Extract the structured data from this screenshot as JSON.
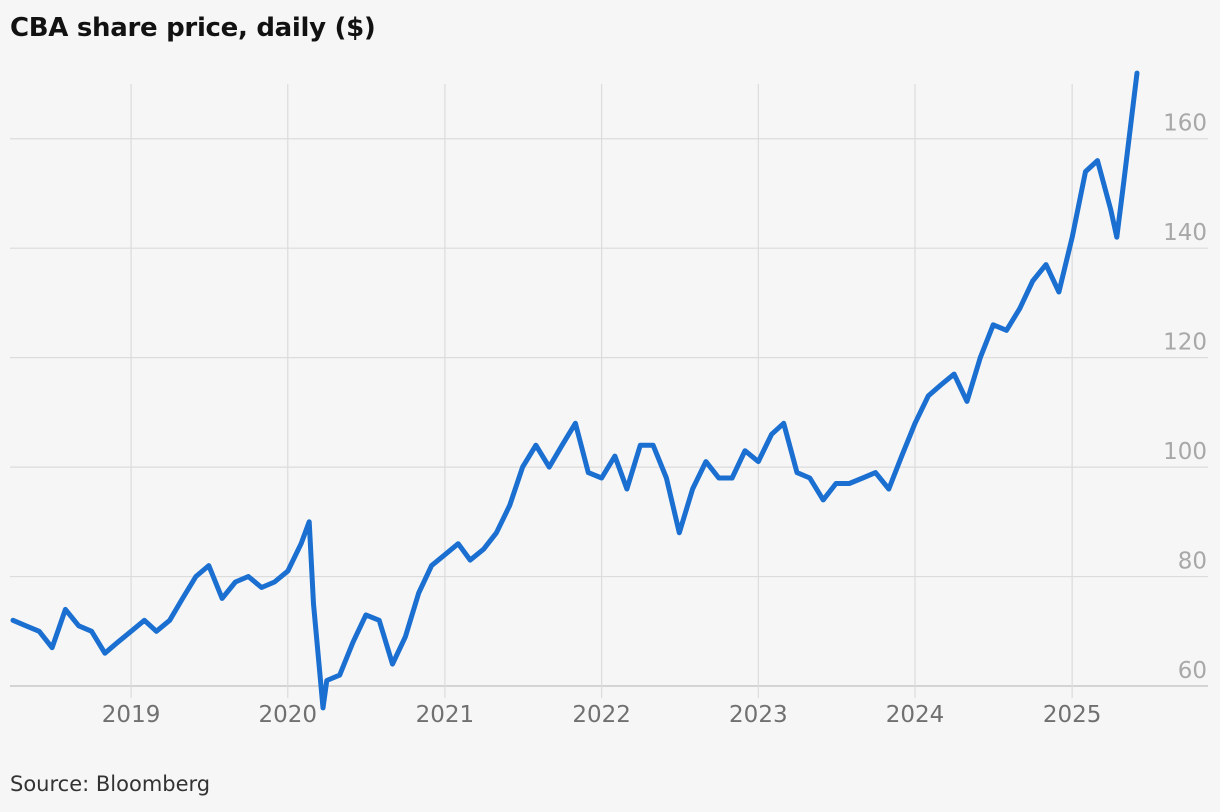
{
  "title": "CBA share price, daily ($)",
  "source": "Source: Bloomberg",
  "colors": {
    "line": "#1a6fd1",
    "grid": "#dcdcdc",
    "y_tick_text": "#a8a8a8",
    "x_tick_text": "#707070",
    "background": "#f6f6f6"
  },
  "chart_data": {
    "type": "line",
    "title": "CBA share price, daily ($)",
    "xlabel": "",
    "ylabel": "",
    "x_type": "date",
    "xlim": [
      "2018-03-25",
      "2025-06-08"
    ],
    "ylim": [
      60,
      170
    ],
    "grid": true,
    "x_ticks": [
      {
        "date": "2019-01-01",
        "label": "2019"
      },
      {
        "date": "2020-01-01",
        "label": "2020"
      },
      {
        "date": "2021-01-01",
        "label": "2021"
      },
      {
        "date": "2022-01-01",
        "label": "2022"
      },
      {
        "date": "2023-01-01",
        "label": "2023"
      },
      {
        "date": "2024-01-01",
        "label": "2024"
      },
      {
        "date": "2025-01-01",
        "label": "2025"
      }
    ],
    "y_ticks": [
      60,
      80,
      100,
      120,
      140,
      160
    ],
    "series": [
      {
        "x": [
          "2018-04-01",
          "2018-05-01",
          "2018-06-01",
          "2018-07-01",
          "2018-08-01",
          "2018-09-01",
          "2018-10-01",
          "2018-11-01",
          "2018-12-01",
          "2019-01-01",
          "2019-02-01",
          "2019-03-01",
          "2019-04-01",
          "2019-05-01",
          "2019-06-01",
          "2019-07-01",
          "2019-08-01",
          "2019-09-01",
          "2019-10-01",
          "2019-11-01",
          "2019-12-01",
          "2020-01-01",
          "2020-02-01",
          "2020-02-20",
          "2020-03-01",
          "2020-03-23",
          "2020-04-01",
          "2020-05-01",
          "2020-06-01",
          "2020-07-01",
          "2020-08-01",
          "2020-09-01",
          "2020-10-01",
          "2020-11-01",
          "2020-12-01",
          "2021-01-01",
          "2021-02-01",
          "2021-03-01",
          "2021-04-01",
          "2021-05-01",
          "2021-06-01",
          "2021-07-01",
          "2021-08-01",
          "2021-09-01",
          "2021-10-01",
          "2021-11-01",
          "2021-12-01",
          "2022-01-01",
          "2022-02-01",
          "2022-03-01",
          "2022-04-01",
          "2022-05-01",
          "2022-06-01",
          "2022-07-01",
          "2022-08-01",
          "2022-09-01",
          "2022-10-01",
          "2022-11-01",
          "2022-12-01",
          "2023-01-01",
          "2023-02-01",
          "2023-03-01",
          "2023-04-01",
          "2023-05-01",
          "2023-06-01",
          "2023-07-01",
          "2023-08-01",
          "2023-09-01",
          "2023-10-01",
          "2023-11-01",
          "2023-12-01",
          "2024-01-01",
          "2024-02-01",
          "2024-03-01",
          "2024-04-01",
          "2024-05-01",
          "2024-06-01",
          "2024-07-01",
          "2024-08-01",
          "2024-09-01",
          "2024-10-01",
          "2024-11-01",
          "2024-12-01",
          "2025-01-01",
          "2025-02-01",
          "2025-03-01",
          "2025-04-01",
          "2025-04-15",
          "2025-05-01",
          "2025-06-01"
        ],
        "values": [
          72,
          71,
          70,
          67,
          74,
          71,
          70,
          66,
          68,
          70,
          72,
          70,
          72,
          76,
          80,
          82,
          76,
          79,
          80,
          78,
          79,
          81,
          86,
          90,
          75,
          56,
          61,
          62,
          68,
          73,
          72,
          64,
          69,
          77,
          82,
          84,
          86,
          83,
          85,
          88,
          93,
          100,
          104,
          100,
          104,
          108,
          99,
          98,
          102,
          96,
          104,
          104,
          98,
          88,
          96,
          101,
          98,
          98,
          103,
          101,
          106,
          108,
          99,
          98,
          94,
          97,
          97,
          98,
          99,
          96,
          102,
          108,
          113,
          115,
          117,
          112,
          120,
          126,
          125,
          129,
          134,
          137,
          132,
          142,
          154,
          156,
          147,
          142,
          152,
          172
        ]
      }
    ]
  }
}
